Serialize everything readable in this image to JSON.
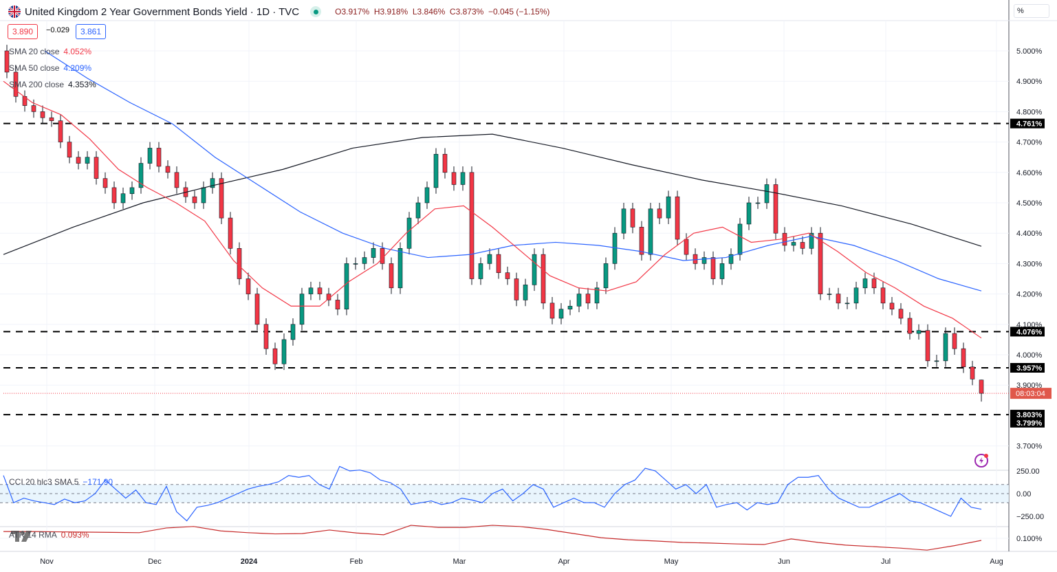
{
  "header": {
    "title": "United Kingdom 2 Year Government Bonds Yield · 1D · TVC",
    "open": "O3.917%",
    "high": "H3.918%",
    "low": "L3.846%",
    "close": "C3.873%",
    "change": "−0.045 (−1.15%)",
    "bid": "3.890",
    "spread": "−0.029",
    "ask": "3.861",
    "scale_button": "%"
  },
  "legend": {
    "sma20_label": "SMA 20 close",
    "sma20_value": "4.052%",
    "sma50_label": "SMA 50 close",
    "sma50_value": "4.209%",
    "sma200_label": "SMA 200 close",
    "sma200_value": "4.353%",
    "cci_label": "CCI 20 hlc3 SMA 5",
    "cci_value": "−171.90",
    "atr_label": "ATR 14 RMA",
    "atr_value": "0.093%"
  },
  "colors": {
    "up": "#089981",
    "down": "#f23645",
    "sma20": "#f23645",
    "sma50": "#2962ff",
    "sma200": "#131722",
    "cci": "#2962ff",
    "atr": "#c62828"
  },
  "chart_data": {
    "type": "candlestick",
    "symbol": "United Kingdom 2 Year Government Bonds Yield",
    "interval": "1D",
    "ylim": [
      3.65,
      5.08
    ],
    "y_ticks": [
      "5.000%",
      "4.900%",
      "4.800%",
      "4.700%",
      "4.600%",
      "4.500%",
      "4.400%",
      "4.300%",
      "4.200%",
      "4.100%",
      "4.000%",
      "3.900%",
      "3.700%"
    ],
    "x_ticks": [
      "Nov",
      "Dec",
      "2024",
      "Feb",
      "Mar",
      "Apr",
      "May",
      "Jun",
      "Jul",
      "Aug"
    ],
    "closes": [
      4.93,
      4.85,
      4.82,
      4.8,
      4.78,
      4.77,
      4.7,
      4.65,
      4.63,
      4.65,
      4.58,
      4.55,
      4.5,
      4.53,
      4.55,
      4.63,
      4.68,
      4.62,
      4.6,
      4.55,
      4.52,
      4.5,
      4.55,
      4.58,
      4.45,
      4.35,
      4.25,
      4.2,
      4.1,
      4.02,
      3.97,
      4.05,
      4.1,
      4.2,
      4.22,
      4.2,
      4.18,
      4.15,
      4.3,
      4.3,
      4.32,
      4.35,
      4.3,
      4.22,
      4.35,
      4.45,
      4.5,
      4.55,
      4.66,
      4.6,
      4.56,
      4.6,
      4.25,
      4.3,
      4.33,
      4.27,
      4.25,
      4.18,
      4.23,
      4.33,
      4.17,
      4.12,
      4.15,
      4.16,
      4.2,
      4.17,
      4.22,
      4.3,
      4.4,
      4.48,
      4.42,
      4.33,
      4.48,
      4.45,
      4.52,
      4.38,
      4.33,
      4.3,
      4.32,
      4.25,
      4.3,
      4.33,
      4.43,
      4.5,
      4.5,
      4.56,
      4.4,
      4.36,
      4.37,
      4.35,
      4.4,
      4.2,
      4.2,
      4.17,
      4.17,
      4.22,
      4.25,
      4.22,
      4.17,
      4.15,
      4.12,
      4.07,
      4.08,
      3.98,
      3.98,
      4.07,
      4.02,
      3.96,
      3.92,
      3.873
    ],
    "last_candle": {
      "open": 3.917,
      "high": 3.918,
      "low": 3.846,
      "close": 3.873
    },
    "sma20": [
      4.9,
      4.83,
      4.79,
      4.71,
      4.61,
      4.55,
      4.5,
      4.44,
      4.31,
      4.22,
      4.16,
      4.16,
      4.24,
      4.3,
      4.4,
      4.48,
      4.49,
      4.42,
      4.34,
      4.26,
      4.22,
      4.21,
      4.24,
      4.33,
      4.4,
      4.42,
      4.37,
      4.38,
      4.4,
      4.34,
      4.27,
      4.22,
      4.16,
      4.12,
      4.055
    ],
    "sma50": [
      5.0,
      4.91,
      4.83,
      4.76,
      4.65,
      4.56,
      4.47,
      4.4,
      4.35,
      4.32,
      4.33,
      4.36,
      4.37,
      4.36,
      4.34,
      4.31,
      4.32,
      4.36,
      4.39,
      4.36,
      4.31,
      4.25,
      4.21
    ],
    "sma200": [
      4.33,
      4.42,
      4.5,
      4.557,
      4.61,
      4.68,
      4.715,
      4.726,
      4.68,
      4.625,
      4.575,
      4.535,
      4.49,
      4.43,
      4.357
    ],
    "levels": [
      {
        "value": 4.761,
        "label": "4.761%"
      },
      {
        "value": 4.076,
        "label": "4.076%"
      },
      {
        "value": 3.957,
        "label": "3.957%"
      },
      {
        "value": 3.803,
        "label": "3.803%"
      },
      {
        "value": 3.799,
        "label": "3.799%"
      }
    ],
    "price_line": {
      "value": 3.873,
      "label": "08:03:04"
    },
    "cci": {
      "y_ticks": [
        "250.00",
        "0.00",
        "−250.00"
      ],
      "band": [
        -100,
        100
      ],
      "values": [
        200,
        -100,
        -50,
        -80,
        -100,
        -120,
        -60,
        -100,
        -80,
        0,
        150,
        50,
        -50,
        40,
        -100,
        -120,
        80,
        -200,
        -300,
        -150,
        -130,
        -100,
        -50,
        0,
        50,
        80,
        100,
        130,
        200,
        180,
        200,
        100,
        50,
        300,
        250,
        260,
        230,
        150,
        120,
        50,
        -120,
        -100,
        -80,
        -120,
        -100,
        -50,
        -70,
        -100,
        0,
        50,
        -80,
        0,
        100,
        50,
        -150,
        -100,
        -50,
        -100,
        -100,
        -150,
        0,
        100,
        150,
        280,
        250,
        150,
        50,
        100,
        0,
        100,
        -150,
        -120,
        -100,
        -180,
        -100,
        -120,
        -100,
        100,
        180,
        180,
        200,
        50,
        -50,
        -100,
        -150,
        -150,
        -100,
        -50,
        0,
        -80,
        -100,
        -150,
        -200,
        -250,
        -50,
        -150,
        -171.9
      ]
    },
    "atr": {
      "y_ticks": [
        "0.100%"
      ],
      "values": [
        0.123,
        0.123,
        0.122,
        0.121,
        0.12,
        0.119,
        0.135,
        0.14,
        0.125,
        0.119,
        0.115,
        0.116,
        0.128,
        0.118,
        0.112,
        0.144,
        0.137,
        0.137,
        0.144,
        0.14,
        0.13,
        0.116,
        0.102,
        0.095,
        0.091,
        0.086,
        0.084,
        0.081,
        0.079,
        0.098,
        0.086,
        0.077,
        0.072,
        0.067,
        0.06,
        0.075,
        0.093
      ]
    }
  }
}
